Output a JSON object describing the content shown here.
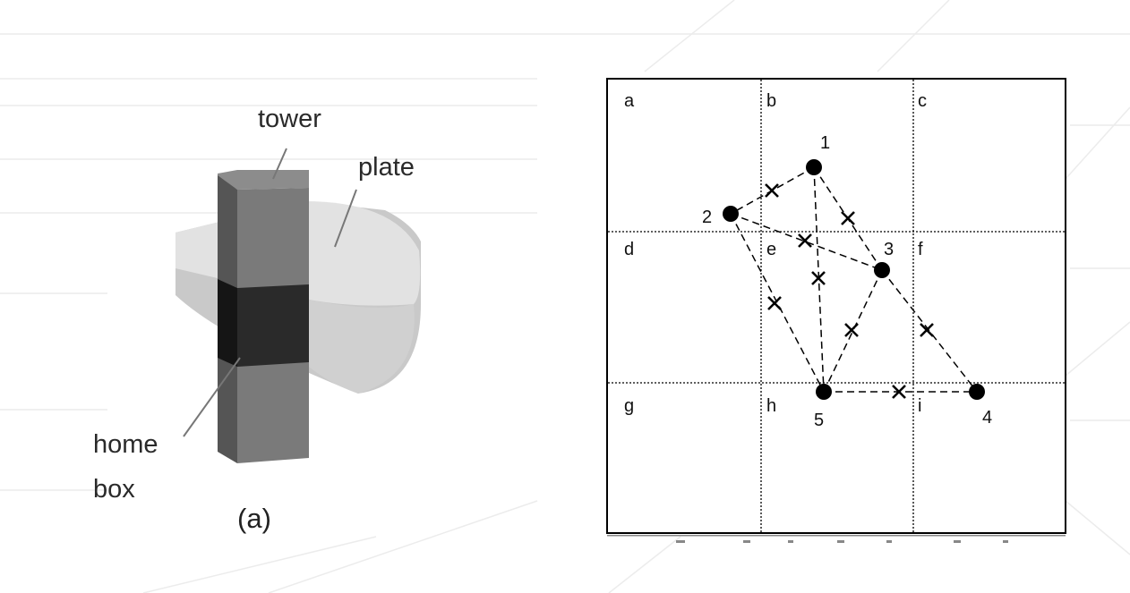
{
  "left_figure": {
    "labels": {
      "tower": "tower",
      "plate": "plate",
      "home": "home",
      "box": "box"
    },
    "caption": "(a)"
  },
  "right_figure": {
    "cells": [
      "a",
      "b",
      "c",
      "d",
      "e",
      "f",
      "g",
      "h",
      "i"
    ],
    "points": [
      {
        "label": "1"
      },
      {
        "label": "2"
      },
      {
        "label": "3"
      },
      {
        "label": "4"
      },
      {
        "label": "5"
      }
    ]
  },
  "colors": {
    "tower_front": "#5e5e5e",
    "tower_side": "#7d7d7d",
    "tower_top": "#8a8a8a",
    "home_box": "#222222",
    "plate": "#cfcfcf",
    "plate_top": "#e4e4e4",
    "background_pattern": "#e8e8e8"
  }
}
